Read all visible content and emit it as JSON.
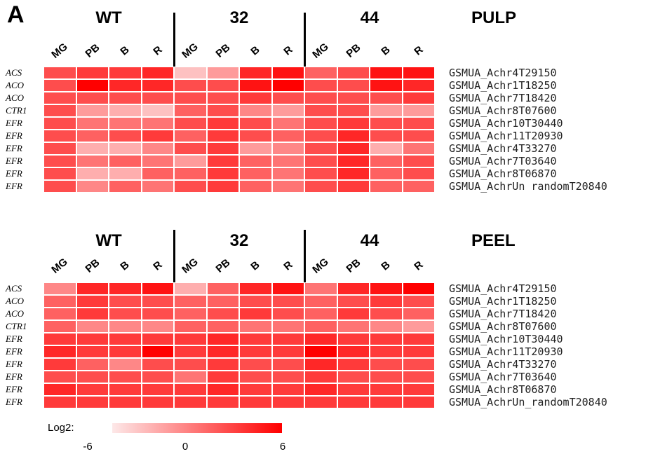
{
  "panel_label": "A",
  "legend": {
    "title": "Log2:",
    "min_label": "-6",
    "mid_label": "0",
    "max_label": "6",
    "color_low": "#fde8e8",
    "color_high": "#ff0000"
  },
  "chart_data": [
    {
      "type": "heatmap",
      "title": "PULP",
      "groups": [
        "WT",
        "32",
        "44"
      ],
      "columns": [
        "MG",
        "PB",
        "B",
        "R",
        "MG",
        "PB",
        "B",
        "R",
        "MG",
        "PB",
        "B",
        "R"
      ],
      "row_labels": [
        "ACS",
        "ACO",
        "ACO",
        "CTR1",
        "EFR",
        "EFR",
        "EFR",
        "EFR",
        "EFR",
        "EFR"
      ],
      "gene_ids": [
        "GSMUA_Achr4T29150",
        "GSMUA_Achr1T18250",
        "GSMUA_Achr7T18420",
        "GSMUA_Achr8T07600",
        "GSMUA_Achr10T30440",
        "GSMUA_Achr11T20930",
        "GSMUA_Achr4T33270",
        "GSMUA_Achr7T03640",
        "GSMUA_Achr8T06870",
        "GSMUA_AchrUn randomT20840"
      ],
      "value_range": [
        -6,
        6
      ],
      "values": [
        [
          2,
          3,
          3,
          4,
          -4,
          -2,
          4,
          5,
          1,
          2,
          5,
          5
        ],
        [
          2,
          6,
          4,
          4,
          2,
          2,
          5,
          6,
          2,
          2,
          5,
          4
        ],
        [
          2,
          2,
          2,
          2,
          2,
          2,
          3,
          2,
          2,
          2,
          2,
          3
        ],
        [
          2,
          -2,
          -3,
          -4,
          1,
          2,
          -1,
          -2,
          2,
          2,
          -2,
          -2
        ],
        [
          2,
          0,
          0,
          0,
          2,
          3,
          2,
          0,
          2,
          3,
          2,
          2
        ],
        [
          2,
          1,
          2,
          3,
          1,
          3,
          2,
          1,
          2,
          4,
          2,
          2
        ],
        [
          2,
          -3,
          -3,
          -1,
          2,
          3,
          -2,
          -1,
          2,
          4,
          -3,
          0
        ],
        [
          2,
          0,
          1,
          0,
          -2,
          3,
          1,
          0,
          2,
          4,
          1,
          2
        ],
        [
          2,
          -3,
          -3,
          1,
          1,
          3,
          1,
          0,
          2,
          4,
          1,
          2
        ],
        [
          2,
          -1,
          1,
          0,
          2,
          3,
          1,
          0,
          2,
          3,
          1,
          1
        ]
      ]
    },
    {
      "type": "heatmap",
      "title": "PEEL",
      "groups": [
        "WT",
        "32",
        "44"
      ],
      "columns": [
        "MG",
        "PB",
        "B",
        "R",
        "MG",
        "PB",
        "B",
        "R",
        "MG",
        "PB",
        "B",
        "R"
      ],
      "row_labels": [
        "ACS",
        "ACO",
        "ACO",
        "CTR1",
        "EFR",
        "EFR",
        "EFR",
        "EFR",
        "EFR",
        "EFR"
      ],
      "gene_ids": [
        "GSMUA_Achr4T29150",
        "GSMUA_Achr1T18250",
        "GSMUA_Achr7T18420",
        "GSMUA_Achr8T07600",
        "GSMUA_Achr10T30440",
        "GSMUA_Achr11T20930",
        "GSMUA_Achr4T33270",
        "GSMUA_Achr7T03640",
        "GSMUA_Achr8T06870",
        "GSMUA_AchrUn_randomT20840"
      ],
      "value_range": [
        -6,
        6
      ],
      "values": [
        [
          -1,
          4,
          4,
          5,
          -3,
          1,
          4,
          5,
          0,
          4,
          5,
          6
        ],
        [
          1,
          3,
          2,
          2,
          1,
          1,
          2,
          2,
          1,
          2,
          3,
          2
        ],
        [
          1,
          3,
          2,
          2,
          1,
          2,
          3,
          2,
          1,
          3,
          2,
          1
        ],
        [
          1,
          -1,
          -1,
          -1,
          1,
          1,
          0,
          0,
          1,
          0,
          -1,
          -2
        ],
        [
          3,
          3,
          3,
          3,
          3,
          4,
          3,
          3,
          4,
          3,
          3,
          3
        ],
        [
          4,
          3,
          3,
          6,
          3,
          4,
          3,
          3,
          6,
          4,
          3,
          3
        ],
        [
          3,
          1,
          -1,
          2,
          2,
          3,
          2,
          2,
          4,
          3,
          2,
          2
        ],
        [
          2,
          2,
          2,
          2,
          0,
          3,
          2,
          2,
          3,
          2,
          2,
          2
        ],
        [
          4,
          3,
          3,
          3,
          3,
          4,
          3,
          3,
          4,
          3,
          3,
          3
        ],
        [
          3,
          3,
          3,
          3,
          3,
          3,
          3,
          3,
          3,
          3,
          3,
          3
        ]
      ]
    }
  ]
}
